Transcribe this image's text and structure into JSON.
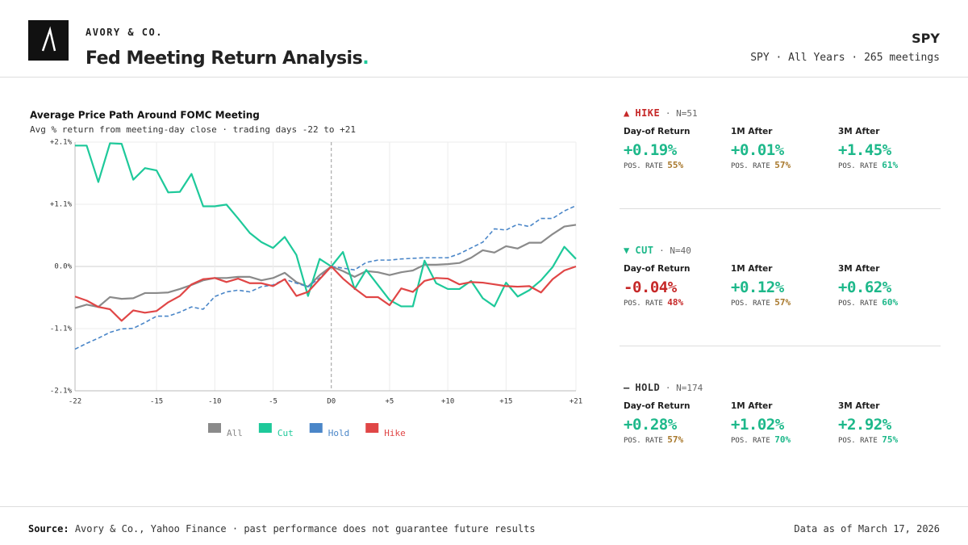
{
  "header": {
    "brand": "AVORY & CO.",
    "title": "Fed Meeting Return Analysis",
    "title_dot": ".",
    "ticker": "SPY",
    "scope": "SPY · All Years · 265 meetings"
  },
  "chart_data": {
    "type": "line",
    "title": "Average Price Path Around FOMC Meeting",
    "subtitle": "Avg % return from meeting-day close · trading days -22 to +21",
    "x": [
      -22,
      -21,
      -20,
      -19,
      -18,
      -17,
      -16,
      -15,
      -14,
      -13,
      -12,
      -11,
      -10,
      -9,
      -8,
      -7,
      -6,
      -5,
      -4,
      -3,
      -2,
      -1,
      0,
      1,
      2,
      3,
      4,
      5,
      6,
      7,
      8,
      9,
      10,
      11,
      12,
      13,
      14,
      15,
      16,
      17,
      18,
      19,
      20,
      21
    ],
    "xlim": [
      -22,
      21
    ],
    "xticks": [
      -22,
      -15,
      -10,
      -5,
      {
        "value": 0,
        "label": "D0"
      },
      {
        "value": 5,
        "label": "+5"
      },
      {
        "value": 10,
        "label": "+10"
      },
      {
        "value": 15,
        "label": "+15"
      },
      {
        "value": 21,
        "label": "+21"
      }
    ],
    "ylim": [
      -2.15,
      2.15
    ],
    "yticks": [
      {
        "value": 2.15,
        "label": "+2.1%"
      },
      {
        "value": 1.075,
        "label": "+1.1%"
      },
      {
        "value": 0,
        "label": "0.0%"
      },
      {
        "value": -1.075,
        "label": "-1.1%"
      },
      {
        "value": -2.15,
        "label": "-2.1%"
      }
    ],
    "grid": true,
    "reference_x": 0,
    "series": [
      {
        "name": "All",
        "color": "#8a8a8a",
        "dashed": false,
        "values": [
          -0.72,
          -0.66,
          -0.7,
          -0.53,
          -0.56,
          -0.55,
          -0.46,
          -0.46,
          -0.45,
          -0.39,
          -0.32,
          -0.24,
          -0.2,
          -0.2,
          -0.18,
          -0.18,
          -0.24,
          -0.2,
          -0.11,
          -0.27,
          -0.35,
          -0.15,
          0,
          -0.08,
          -0.18,
          -0.08,
          -0.1,
          -0.15,
          -0.1,
          -0.07,
          0.03,
          0.03,
          0.04,
          0.06,
          0.15,
          0.28,
          0.24,
          0.35,
          0.31,
          0.41,
          0.41,
          0.56,
          0.69,
          0.72
        ]
      },
      {
        "name": "Cut",
        "color": "#1ec99a",
        "dashed": false,
        "values": [
          2.09,
          2.09,
          1.46,
          2.13,
          2.12,
          1.5,
          1.7,
          1.66,
          1.28,
          1.29,
          1.6,
          1.04,
          1.04,
          1.07,
          0.83,
          0.58,
          0.42,
          0.32,
          0.51,
          0.2,
          -0.51,
          0.13,
          0,
          0.25,
          -0.39,
          -0.06,
          -0.32,
          -0.58,
          -0.69,
          -0.69,
          0.1,
          -0.29,
          -0.39,
          -0.39,
          -0.25,
          -0.55,
          -0.69,
          -0.28,
          -0.52,
          -0.41,
          -0.24,
          -0.01,
          0.34,
          0.13
        ]
      },
      {
        "name": "Hold",
        "color": "#4a86c8",
        "dashed": true,
        "values": [
          -1.43,
          -1.33,
          -1.24,
          -1.14,
          -1.08,
          -1.07,
          -0.97,
          -0.86,
          -0.86,
          -0.79,
          -0.7,
          -0.74,
          -0.52,
          -0.44,
          -0.41,
          -0.44,
          -0.35,
          -0.32,
          -0.22,
          -0.29,
          -0.35,
          -0.2,
          0,
          -0.03,
          -0.06,
          0.07,
          0.11,
          0.11,
          0.13,
          0.14,
          0.15,
          0.15,
          0.15,
          0.22,
          0.32,
          0.42,
          0.65,
          0.63,
          0.73,
          0.69,
          0.83,
          0.83,
          0.96,
          1.05
        ]
      },
      {
        "name": "Hike",
        "color": "#e04646",
        "dashed": false,
        "values": [
          -0.52,
          -0.59,
          -0.7,
          -0.74,
          -0.94,
          -0.76,
          -0.8,
          -0.77,
          -0.62,
          -0.51,
          -0.31,
          -0.22,
          -0.2,
          -0.27,
          -0.21,
          -0.29,
          -0.29,
          -0.34,
          -0.22,
          -0.51,
          -0.44,
          -0.22,
          0,
          -0.21,
          -0.38,
          -0.53,
          -0.53,
          -0.67,
          -0.38,
          -0.44,
          -0.25,
          -0.2,
          -0.21,
          -0.31,
          -0.27,
          -0.28,
          -0.31,
          -0.34,
          -0.35,
          -0.34,
          -0.45,
          -0.22,
          -0.07,
          0
        ]
      }
    ]
  },
  "panels": [
    {
      "marker": "▲",
      "name": "HIKE",
      "count": "· N=51",
      "color": "#c62828",
      "stats": [
        {
          "label": "Day-of Return",
          "value": "+0.19%",
          "value_color": "#1db88a",
          "pos_label": "POS. RATE",
          "pos": "55%",
          "pos_color": "#a8782c"
        },
        {
          "label": "1M After",
          "value": "+0.01%",
          "value_color": "#1db88a",
          "pos_label": "POS. RATE",
          "pos": "57%",
          "pos_color": "#a8782c"
        },
        {
          "label": "3M After",
          "value": "+1.45%",
          "value_color": "#1db88a",
          "pos_label": "POS. RATE",
          "pos": "61%",
          "pos_color": "#1db88a"
        }
      ]
    },
    {
      "marker": "▼",
      "name": "CUT",
      "count": "· N=40",
      "color": "#1db88a",
      "stats": [
        {
          "label": "Day-of Return",
          "value": "-0.04%",
          "value_color": "#c62828",
          "pos_label": "POS. RATE",
          "pos": "48%",
          "pos_color": "#c62828"
        },
        {
          "label": "1M After",
          "value": "+0.12%",
          "value_color": "#1db88a",
          "pos_label": "POS. RATE",
          "pos": "57%",
          "pos_color": "#a8782c"
        },
        {
          "label": "3M After",
          "value": "+0.62%",
          "value_color": "#1db88a",
          "pos_label": "POS. RATE",
          "pos": "60%",
          "pos_color": "#1db88a"
        }
      ]
    },
    {
      "marker": "—",
      "name": "HOLD",
      "count": "· N=174",
      "color": "#333333",
      "stats": [
        {
          "label": "Day-of Return",
          "value": "+0.28%",
          "value_color": "#1db88a",
          "pos_label": "POS. RATE",
          "pos": "57%",
          "pos_color": "#a8782c"
        },
        {
          "label": "1M After",
          "value": "+1.02%",
          "value_color": "#1db88a",
          "pos_label": "POS. RATE",
          "pos": "70%",
          "pos_color": "#1db88a"
        },
        {
          "label": "3M After",
          "value": "+2.92%",
          "value_color": "#1db88a",
          "pos_label": "POS. RATE",
          "pos": "75%",
          "pos_color": "#1db88a"
        }
      ]
    }
  ],
  "footer": {
    "source_label": "Source:",
    "source": "Avory & Co., Yahoo Finance · past performance does not guarantee future results",
    "as_of": "Data as of March 17, 2026"
  }
}
